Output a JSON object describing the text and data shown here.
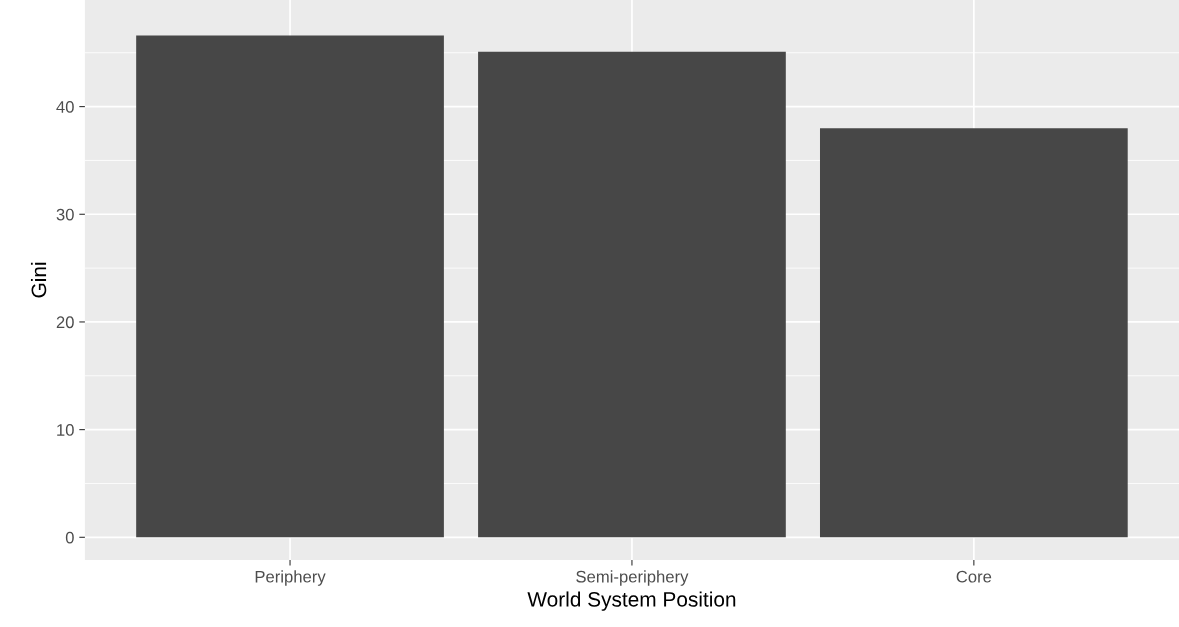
{
  "chart_data": {
    "type": "bar",
    "xlabel": "World System Position",
    "ylabel": "Gini",
    "categories": [
      "Periphery",
      "Semi-periphery",
      "Core"
    ],
    "values": [
      46.6,
      45.1,
      38.0
    ],
    "color": "#474747",
    "ylim": [
      -2.1,
      49.9
    ],
    "yticks": [
      0,
      10,
      20,
      30,
      40
    ],
    "grid": true
  }
}
